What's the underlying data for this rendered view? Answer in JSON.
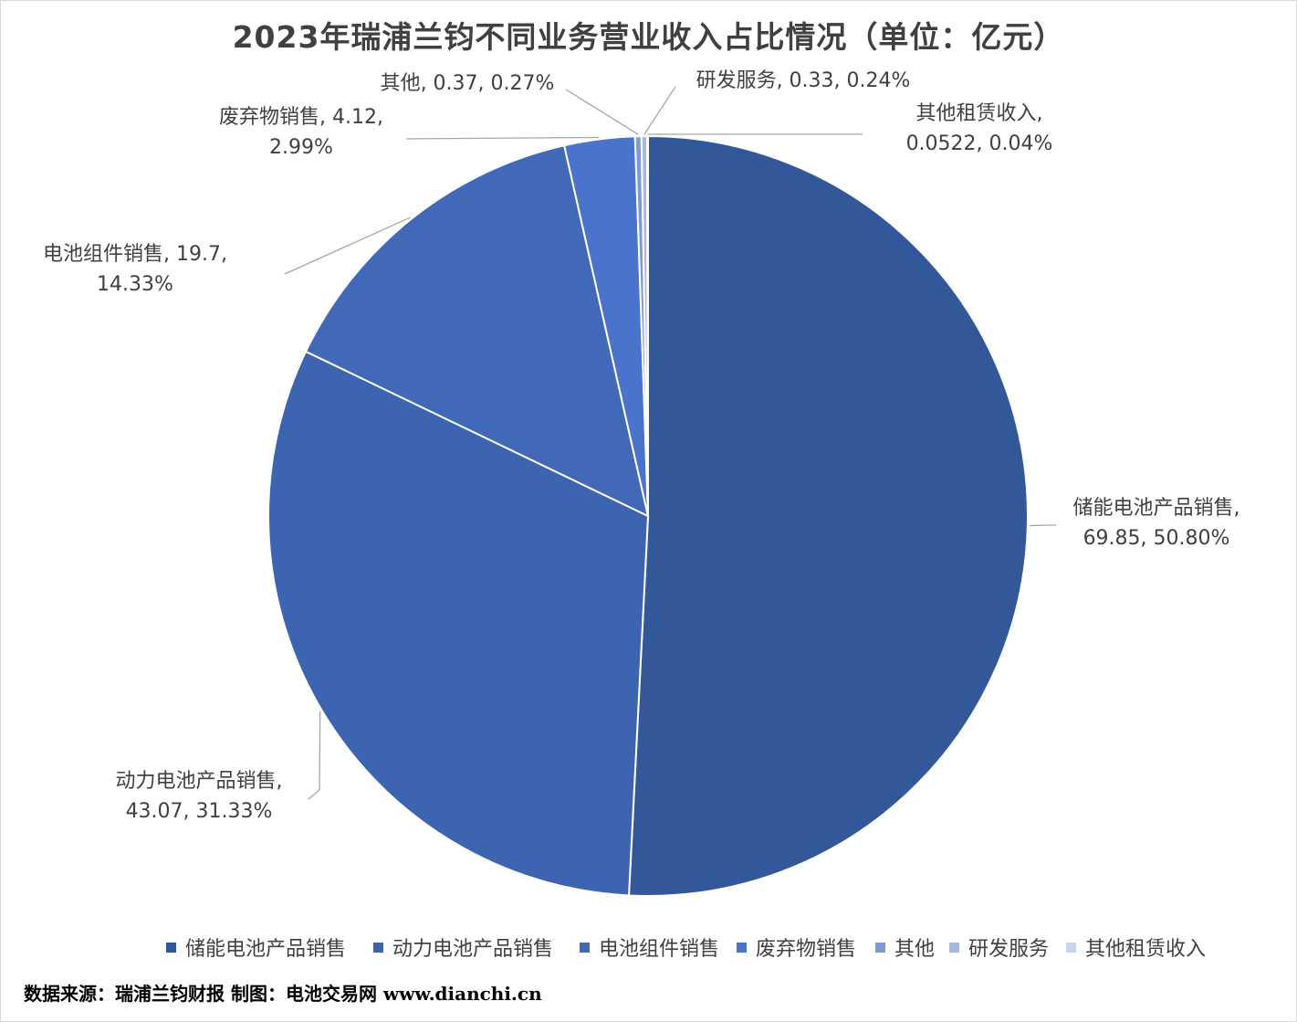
{
  "title": "2023年瑞浦兰钧不同业务营业收入占比情况（单位：亿元）",
  "source": "数据来源：瑞浦兰钧财报  制图：电池交易网 www.dianchi.cn",
  "chart_data": {
    "type": "pie",
    "title": "2023年瑞浦兰钧不同业务营业收入占比情况（单位：亿元）",
    "slices": [
      {
        "name": "储能电池产品销售",
        "value": 69.85,
        "percent": "50.80%",
        "value_label": "69.85",
        "color": "#335899"
      },
      {
        "name": "动力电池产品销售",
        "value": 43.07,
        "percent": "31.33%",
        "value_label": "43.07",
        "color": "#3d64b0"
      },
      {
        "name": "电池组件销售",
        "value": 19.7,
        "percent": "14.33%",
        "value_label": "19.7",
        "color": "#4169b8"
      },
      {
        "name": "废弃物销售",
        "value": 4.12,
        "percent": "2.99%",
        "value_label": "4.12",
        "color": "#4a74cb"
      },
      {
        "name": "其他",
        "value": 0.37,
        "percent": "0.27%",
        "value_label": "0.37",
        "color": "#7f99d1"
      },
      {
        "name": "研发服务",
        "value": 0.33,
        "percent": "0.24%",
        "value_label": "0.33",
        "color": "#a8b8e0"
      },
      {
        "name": "其他租赁收入",
        "value": 0.0522,
        "percent": "0.04%",
        "value_label": "0.0522",
        "color": "#c9d3ec"
      }
    ],
    "legend": [
      "储能电池产品销售",
      "动力电池产品销售",
      "电池组件销售",
      "废弃物销售",
      "其他",
      "研发服务",
      "其他租赁收入"
    ],
    "legend_position": "bottom",
    "data_labels": "category, value, percent"
  }
}
